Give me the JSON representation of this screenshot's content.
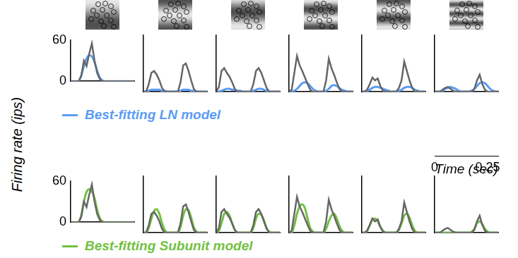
{
  "chart_data": {
    "type": "line",
    "y_label": "Firing rate (ips)",
    "x_label": "Time (sec)",
    "ylim": [
      0,
      60
    ],
    "yticks": [
      0,
      60
    ],
    "xlim": [
      0,
      0.3
    ],
    "xticks": [
      0,
      0.25
    ],
    "x": [
      0,
      0.0125,
      0.025,
      0.0375,
      0.05,
      0.0625,
      0.075,
      0.0875,
      0.1,
      0.1125,
      0.125,
      0.1375,
      0.15,
      0.1625,
      0.175,
      0.1875,
      0.2,
      0.2125,
      0.225,
      0.2375,
      0.25,
      0.2625,
      0.275,
      0.2875,
      0.3
    ],
    "rows": [
      {
        "model": {
          "name": "Best-fitting LN model",
          "color": "#5b9cf5"
        },
        "data_color": "#666666",
        "panels": [
          {
            "data": [
              0,
              0,
              0,
              0,
              8,
              30,
              22,
              40,
              55,
              30,
              12,
              3,
              0,
              0,
              0,
              0,
              0,
              0,
              0,
              0,
              0,
              0,
              0,
              0,
              0
            ],
            "model": [
              0,
              0,
              0,
              0,
              8,
              22,
              33,
              38,
              36,
              28,
              15,
              5,
              1,
              0,
              0,
              0,
              0,
              0,
              0,
              0,
              0,
              0,
              0,
              0,
              0
            ]
          },
          {
            "data": [
              0,
              0,
              8,
              20,
              22,
              18,
              12,
              4,
              0,
              0,
              0,
              0,
              0,
              0,
              10,
              28,
              30,
              22,
              12,
              3,
              0,
              0,
              0,
              0,
              0
            ],
            "model": [
              0,
              0,
              1,
              2,
              2,
              2,
              2,
              1,
              1,
              0,
              0,
              0,
              0,
              0,
              1,
              2,
              2,
              2,
              1,
              1,
              0,
              0,
              0,
              0,
              0
            ]
          },
          {
            "data": [
              0,
              5,
              22,
              25,
              20,
              16,
              10,
              3,
              0,
              0,
              0,
              0,
              0,
              0,
              8,
              22,
              25,
              20,
              12,
              4,
              0,
              0,
              0,
              0,
              0
            ],
            "model": [
              0,
              0,
              1,
              2,
              3,
              3,
              2,
              2,
              1,
              1,
              0,
              0,
              0,
              0,
              1,
              2,
              3,
              3,
              2,
              1,
              0,
              0,
              0,
              0,
              0
            ]
          },
          {
            "data": [
              0,
              2,
              20,
              38,
              28,
              22,
              15,
              8,
              2,
              0,
              0,
              0,
              0,
              0,
              12,
              35,
              25,
              18,
              10,
              3,
              0,
              0,
              0,
              0,
              0
            ],
            "model": [
              0,
              0,
              1,
              3,
              6,
              9,
              10,
              9,
              6,
              3,
              1,
              0,
              0,
              0,
              1,
              3,
              6,
              7,
              6,
              4,
              2,
              1,
              0,
              0,
              0
            ]
          },
          {
            "data": [
              0,
              0,
              2,
              8,
              15,
              12,
              14,
              6,
              1,
              0,
              0,
              0,
              0,
              0,
              4,
              12,
              32,
              22,
              12,
              4,
              0,
              0,
              0,
              0,
              0
            ],
            "model": [
              0,
              0,
              1,
              2,
              4,
              5,
              5,
              4,
              3,
              2,
              1,
              0,
              0,
              0,
              1,
              2,
              4,
              5,
              5,
              4,
              2,
              1,
              0,
              0,
              0
            ]
          },
          {
            "data": [
              0,
              0,
              0,
              2,
              4,
              5,
              3,
              1,
              0,
              0,
              0,
              0,
              0,
              0,
              0,
              3,
              12,
              18,
              8,
              2,
              0,
              0,
              0,
              0,
              0
            ],
            "model": [
              0,
              0,
              0,
              1,
              3,
              4,
              5,
              4,
              3,
              1,
              0,
              0,
              0,
              0,
              1,
              3,
              6,
              9,
              10,
              9,
              6,
              3,
              1,
              0,
              0
            ]
          }
        ]
      },
      {
        "model": {
          "name": "Best-fitting Subunit model",
          "color": "#72c140"
        },
        "data_color": "#666666",
        "panels": [
          {
            "data": [
              0,
              0,
              0,
              0,
              8,
              30,
              22,
              40,
              55,
              30,
              12,
              3,
              0,
              0,
              0,
              0,
              0,
              0,
              0,
              0,
              0,
              0,
              0,
              0,
              0
            ],
            "model": [
              0,
              0,
              0,
              0,
              10,
              30,
              44,
              48,
              45,
              35,
              18,
              6,
              1,
              0,
              0,
              0,
              0,
              0,
              0,
              0,
              0,
              0,
              0,
              0,
              0
            ]
          },
          {
            "data": [
              0,
              0,
              8,
              20,
              22,
              18,
              12,
              4,
              0,
              0,
              0,
              0,
              0,
              0,
              10,
              28,
              30,
              22,
              12,
              3,
              0,
              0,
              0,
              0,
              0
            ],
            "model": [
              0,
              0,
              5,
              15,
              23,
              25,
              20,
              10,
              3,
              0,
              0,
              0,
              0,
              0,
              6,
              18,
              25,
              24,
              16,
              6,
              1,
              0,
              0,
              0,
              0
            ]
          },
          {
            "data": [
              0,
              5,
              22,
              25,
              20,
              16,
              10,
              3,
              0,
              0,
              0,
              0,
              0,
              0,
              8,
              22,
              25,
              20,
              12,
              4,
              0,
              0,
              0,
              0,
              0
            ],
            "model": [
              0,
              2,
              10,
              20,
              22,
              18,
              10,
              3,
              0,
              0,
              0,
              0,
              0,
              0,
              5,
              15,
              20,
              19,
              13,
              5,
              1,
              0,
              0,
              0,
              0
            ]
          },
          {
            "data": [
              0,
              2,
              20,
              38,
              28,
              22,
              15,
              8,
              2,
              0,
              0,
              0,
              0,
              0,
              12,
              35,
              25,
              18,
              10,
              3,
              0,
              0,
              0,
              0,
              0
            ],
            "model": [
              0,
              0,
              8,
              20,
              28,
              30,
              26,
              15,
              5,
              1,
              0,
              0,
              0,
              0,
              4,
              12,
              18,
              20,
              15,
              7,
              2,
              0,
              0,
              0,
              0
            ]
          },
          {
            "data": [
              0,
              0,
              2,
              8,
              15,
              12,
              14,
              6,
              1,
              0,
              0,
              0,
              0,
              0,
              4,
              12,
              32,
              22,
              12,
              4,
              0,
              0,
              0,
              0,
              0
            ],
            "model": [
              0,
              0,
              2,
              8,
              14,
              15,
              12,
              6,
              2,
              0,
              0,
              0,
              0,
              0,
              3,
              10,
              18,
              20,
              16,
              8,
              2,
              0,
              0,
              0,
              0
            ]
          },
          {
            "data": [
              0,
              0,
              0,
              2,
              4,
              5,
              3,
              1,
              0,
              0,
              0,
              0,
              0,
              0,
              0,
              3,
              12,
              18,
              8,
              2,
              0,
              0,
              0,
              0,
              0
            ],
            "model": [
              0,
              0,
              0,
              0,
              0,
              0,
              0,
              0,
              0,
              0,
              0,
              0,
              0,
              0,
              1,
              4,
              10,
              12,
              9,
              4,
              1,
              0,
              0,
              0,
              0
            ]
          }
        ]
      }
    ]
  }
}
